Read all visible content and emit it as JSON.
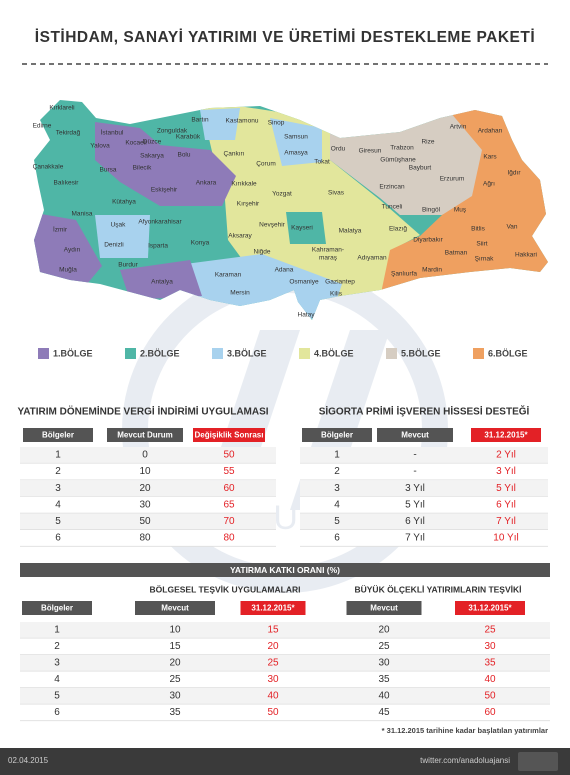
{
  "header": {
    "title": "İSTİHDAM, SANAYİ YATIRIMI VE ÜRETİMİ DESTEKLEME PAKETİ"
  },
  "map": {
    "labels": [
      "Kırklareli",
      "Edirne",
      "Tekirdağ",
      "İstanbul",
      "Yalova",
      "Kocaeli",
      "Zonguldak",
      "Bartın",
      "Kastamonu",
      "Sinop",
      "Samsun",
      "Karabük",
      "Düzce",
      "Bolu",
      "Sakarya",
      "Çanakkale",
      "Bursa",
      "Bilecik",
      "Balıkesir",
      "Çankırı",
      "Çorum",
      "Amasya",
      "Tokat",
      "Ordu",
      "Giresun",
      "Rize",
      "Artvin",
      "Ardahan",
      "Trabzon",
      "Gümüşhane",
      "Bayburt",
      "Kars",
      "Iğdır",
      "Ağrı",
      "Erzurum",
      "Erzincan",
      "Eskişehir",
      "Ankara",
      "Kırıkkale",
      "Yozgat",
      "Sivas",
      "Kütahya",
      "Manisa",
      "Kırşehir",
      "Tunceli",
      "Bingöl",
      "Muş",
      "Afyonkarahisar",
      "Uşak",
      "İzmir",
      "Nevşehir",
      "Kayseri",
      "Malatya",
      "Elazığ",
      "Bitlis",
      "Van",
      "Aksaray",
      "Denizli",
      "Isparta",
      "Konya",
      "Aydın",
      "Kahraman-",
      "maraş",
      "Diyarbakır",
      "Siirt",
      "Niğde",
      "Adıyaman",
      "Batman",
      "Hakkari",
      "Şırnak",
      "Burdur",
      "Muğla",
      "Karaman",
      "Adana",
      "Osmaniye",
      "Gaziantep",
      "Şanlıurfa",
      "Mardin",
      "Antalya",
      "Mersin",
      "Kilis",
      "Hatay"
    ]
  },
  "legend": {
    "items": [
      {
        "label": "1.BÖLGE",
        "color": "#8e7bb8"
      },
      {
        "label": "2.BÖLGE",
        "color": "#4fb6a6"
      },
      {
        "label": "3.BÖLGE",
        "color": "#a8d2ee"
      },
      {
        "label": "4.BÖLGE",
        "color": "#e2e69c"
      },
      {
        "label": "5.BÖLGE",
        "color": "#d6cdc2"
      },
      {
        "label": "6.BÖLGE",
        "color": "#efa060"
      }
    ]
  },
  "tables": [
    {
      "title": "YATIRIM DÖNEMİNDE VERGİ İNDİRİMİ UYGULAMASI",
      "columns": [
        "Bölgeler",
        "Mevcut Durum",
        "Değişiklik Sonrası"
      ],
      "rows": [
        [
          "1",
          "0",
          "50"
        ],
        [
          "2",
          "10",
          "55"
        ],
        [
          "3",
          "20",
          "60"
        ],
        [
          "4",
          "30",
          "65"
        ],
        [
          "5",
          "50",
          "70"
        ],
        [
          "6",
          "80",
          "80"
        ]
      ]
    },
    {
      "title": "SİGORTA PRİMİ İŞVEREN HİSSESİ DESTEĞİ",
      "columns": [
        "Bölgeler",
        "Mevcut",
        "31.12.2015*"
      ],
      "rows": [
        [
          "1",
          "-",
          "2 Yıl"
        ],
        [
          "2",
          "-",
          "3 Yıl"
        ],
        [
          "3",
          "3 Yıl",
          "5 Yıl"
        ],
        [
          "4",
          "5 Yıl",
          "6 Yıl"
        ],
        [
          "5",
          "6 Yıl",
          "7 Yıl"
        ],
        [
          "6",
          "7 Yıl",
          "10 Yıl"
        ]
      ]
    }
  ],
  "bottom_table": {
    "title": "YATIRMA KATKI ORANI  (%)",
    "groups": [
      "BÖLGESEL TEŞVİK UYGULAMALARI",
      "BÜYÜK ÖLÇEKLİ YATIRIMLARIN TEŞVİKİ"
    ],
    "columns": [
      "Bölgeler",
      "Mevcut",
      "31.12.2015*",
      "Mevcut",
      "31.12.2015*"
    ],
    "rows": [
      [
        "1",
        "10",
        "15",
        "20",
        "25"
      ],
      [
        "2",
        "15",
        "20",
        "25",
        "30"
      ],
      [
        "3",
        "20",
        "25",
        "30",
        "35"
      ],
      [
        "4",
        "25",
        "30",
        "35",
        "40"
      ],
      [
        "5",
        "30",
        "40",
        "40",
        "50"
      ],
      [
        "6",
        "35",
        "50",
        "45",
        "60"
      ]
    ]
  },
  "footnote": "* 31.12.2015 tarihine kadar başlatılan yatırımlar",
  "footer": {
    "date": "02.04.2015",
    "link": "twitter.com/anadoluajansi"
  },
  "watermark": "ANADOLU AJANSI"
}
